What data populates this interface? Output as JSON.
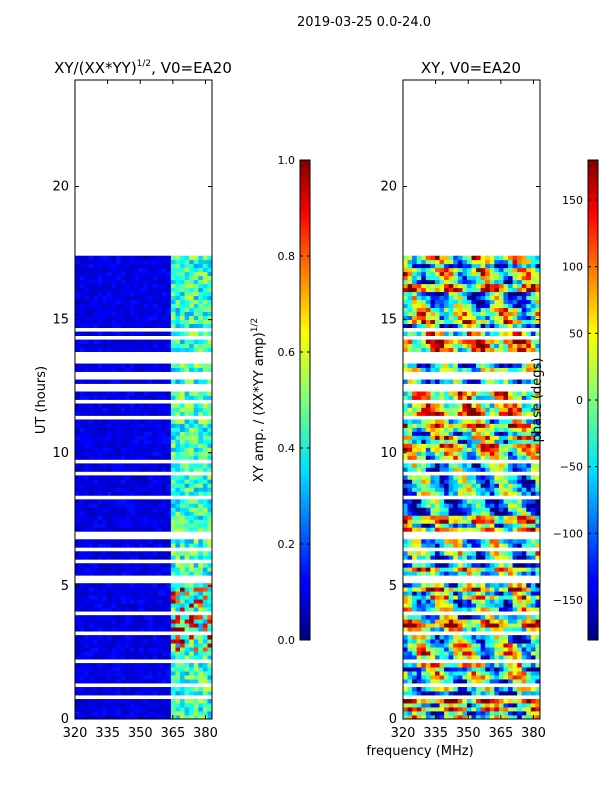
{
  "suptitle": "2019-03-25 0.0-24.0",
  "shared_xlabel": "frequency (MHz)",
  "chart_data": [
    {
      "type": "heatmap",
      "title": "XY/(XX*YY)",
      "title_exponent": "1/2",
      "title_suffix": ", V0=EA20",
      "xlabel": "",
      "ylabel": "UT (hours)",
      "xlim": [
        320,
        383
      ],
      "ylim": [
        0,
        24
      ],
      "xticks": [
        320,
        335,
        350,
        365,
        380
      ],
      "yticks": [
        0,
        5,
        10,
        15,
        20
      ],
      "blank_hour_ranges": [
        [
          17.5,
          21.9
        ],
        [
          21.9,
          24.0
        ]
      ],
      "bright_channel_band_mhz": [
        364,
        381
      ],
      "colorbar": {
        "label": "XY amp. / (XX*YY amp)",
        "label_exponent": "1/2",
        "range": [
          0.0,
          1.0
        ],
        "ticks": [
          0.0,
          0.2,
          0.4,
          0.6,
          0.8,
          1.0
        ],
        "colormap": "jet"
      }
    },
    {
      "type": "heatmap",
      "title": "XY, V0=EA20",
      "xlabel": "frequency (MHz)",
      "ylabel": "",
      "xlim": [
        320,
        383
      ],
      "ylim": [
        0,
        24
      ],
      "xticks": [
        320,
        335,
        350,
        365,
        380
      ],
      "yticks": [
        0,
        5,
        10,
        15,
        20
      ],
      "blank_hour_ranges": [
        [
          17.5,
          21.9
        ],
        [
          21.9,
          24.0
        ]
      ],
      "colorbar": {
        "label": "phase (degs)",
        "range": [
          -180,
          180
        ],
        "ticks": [
          -150,
          -100,
          -50,
          0,
          50,
          100,
          150
        ],
        "colormap": "jet"
      }
    }
  ]
}
